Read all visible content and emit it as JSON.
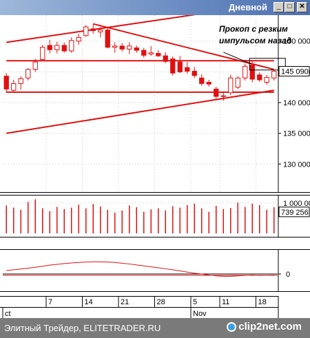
{
  "window": {
    "title": "Дневной",
    "minimize_label": "_",
    "maximize_label": "□",
    "close_label": "✕"
  },
  "chart_data": {
    "type": "candlestick",
    "panes": [
      "price",
      "volume",
      "oscillator"
    ],
    "price_axis": {
      "ticks": [
        130000,
        135000,
        140000,
        145000,
        150000
      ],
      "tick_labels": [
        "130 000",
        "135 000",
        "140 000",
        "145 000",
        "150 000"
      ],
      "range": [
        126000,
        154000
      ]
    },
    "last_price_label": "145 090",
    "annotation": "Прокоп с резким импульсом назад",
    "candles": [
      {
        "o": 144300,
        "h": 144800,
        "l": 141600,
        "c": 142200
      },
      {
        "o": 142000,
        "h": 143700,
        "l": 141800,
        "c": 143100
      },
      {
        "o": 143100,
        "h": 144300,
        "l": 142100,
        "c": 143900
      },
      {
        "o": 144000,
        "h": 145600,
        "l": 143600,
        "c": 145400
      },
      {
        "o": 145400,
        "h": 147100,
        "l": 145000,
        "c": 146600
      },
      {
        "o": 147000,
        "h": 149400,
        "l": 146800,
        "c": 149000
      },
      {
        "o": 149300,
        "h": 150200,
        "l": 148000,
        "c": 148600
      },
      {
        "o": 148600,
        "h": 149900,
        "l": 148000,
        "c": 149300
      },
      {
        "o": 149300,
        "h": 149800,
        "l": 148100,
        "c": 148400
      },
      {
        "o": 148400,
        "h": 150600,
        "l": 148100,
        "c": 150100
      },
      {
        "o": 150000,
        "h": 151200,
        "l": 149400,
        "c": 150600
      },
      {
        "o": 150900,
        "h": 152600,
        "l": 150700,
        "c": 152300
      },
      {
        "o": 152000,
        "h": 152800,
        "l": 151200,
        "c": 151700
      },
      {
        "o": 151500,
        "h": 152300,
        "l": 150600,
        "c": 151800
      },
      {
        "o": 151800,
        "h": 152100,
        "l": 148800,
        "c": 149000
      },
      {
        "o": 149000,
        "h": 149800,
        "l": 148100,
        "c": 149200
      },
      {
        "o": 149200,
        "h": 149700,
        "l": 148300,
        "c": 148700
      },
      {
        "o": 148700,
        "h": 149800,
        "l": 147900,
        "c": 149200
      },
      {
        "o": 148900,
        "h": 149300,
        "l": 148100,
        "c": 148500
      },
      {
        "o": 148500,
        "h": 148900,
        "l": 147300,
        "c": 147700
      },
      {
        "o": 147900,
        "h": 149200,
        "l": 147600,
        "c": 148100
      },
      {
        "o": 148000,
        "h": 148500,
        "l": 147400,
        "c": 147600
      },
      {
        "o": 147600,
        "h": 148200,
        "l": 146400,
        "c": 146700
      },
      {
        "o": 147100,
        "h": 147500,
        "l": 144400,
        "c": 144800
      },
      {
        "o": 146600,
        "h": 147600,
        "l": 144800,
        "c": 145000
      },
      {
        "o": 145700,
        "h": 146600,
        "l": 144700,
        "c": 145100
      },
      {
        "o": 145100,
        "h": 145800,
        "l": 144000,
        "c": 144400
      },
      {
        "o": 144000,
        "h": 144600,
        "l": 142700,
        "c": 143100
      },
      {
        "o": 143300,
        "h": 143700,
        "l": 142600,
        "c": 143000
      },
      {
        "o": 142200,
        "h": 142600,
        "l": 140600,
        "c": 141000
      },
      {
        "o": 141000,
        "h": 141800,
        "l": 140300,
        "c": 141100
      },
      {
        "o": 141600,
        "h": 144500,
        "l": 141200,
        "c": 144000
      },
      {
        "o": 142500,
        "h": 144300,
        "l": 142200,
        "c": 144000
      },
      {
        "o": 144000,
        "h": 146300,
        "l": 143600,
        "c": 145900
      },
      {
        "o": 146100,
        "h": 146700,
        "l": 143300,
        "c": 143800
      },
      {
        "o": 144500,
        "h": 144900,
        "l": 143400,
        "c": 143700
      },
      {
        "o": 143300,
        "h": 144500,
        "l": 142900,
        "c": 144100
      },
      {
        "o": 144000,
        "h": 145300,
        "l": 143600,
        "c": 145100
      }
    ],
    "trendlines": [
      {
        "from": [
          0,
          146800
        ],
        "to": [
          37,
          146800
        ]
      },
      {
        "from": [
          12,
          152800
        ],
        "to": [
          37,
          145400
        ]
      },
      {
        "from": [
          0,
          135000
        ],
        "to": [
          37,
          142000
        ]
      },
      {
        "from": [
          0,
          149800
        ],
        "to": [
          37,
          156200
        ]
      },
      {
        "from": [
          0,
          141700
        ],
        "to": [
          37,
          141700
        ]
      }
    ],
    "volume": {
      "tick_labels": [
        "1 000 00",
        "739 256"
      ],
      "values": [
        0.78,
        0.72,
        0.66,
        0.88,
        0.95,
        0.7,
        0.62,
        0.74,
        0.68,
        0.72,
        0.8,
        0.7,
        0.82,
        0.75,
        0.66,
        0.58,
        0.64,
        0.78,
        0.73,
        0.6,
        0.67,
        0.7,
        0.64,
        0.76,
        0.72,
        0.79,
        0.83,
        0.7,
        0.6,
        0.77,
        0.68,
        0.71,
        0.86,
        0.74,
        0.83,
        0.79,
        0.66,
        0.73
      ]
    },
    "oscillator": {
      "tick_labels": [
        "0"
      ],
      "values": [
        0.18,
        0.22,
        0.26,
        0.3,
        0.35,
        0.4,
        0.46,
        0.5,
        0.54,
        0.57,
        0.6,
        0.62,
        0.63,
        0.63,
        0.62,
        0.6,
        0.56,
        0.52,
        0.47,
        0.42,
        0.37,
        0.32,
        0.27,
        0.22,
        0.16,
        0.1,
        0.04,
        0.0,
        -0.06,
        -0.1,
        -0.12,
        -0.12,
        -0.1,
        -0.08,
        -0.06,
        -0.08,
        -0.07,
        -0.06
      ]
    },
    "x_axis": {
      "labels": [
        {
          "text": "7",
          "index": 6
        },
        {
          "text": "14",
          "index": 11
        },
        {
          "text": "21",
          "index": 16
        },
        {
          "text": "28",
          "index": 21
        },
        {
          "text": "5",
          "index": 26
        },
        {
          "text": "11",
          "index": 30
        },
        {
          "text": "Nov",
          "index": 26,
          "row": 2
        },
        {
          "text": "18",
          "index": 35
        },
        {
          "text": "ct",
          "index": 0,
          "row": 2
        }
      ]
    }
  },
  "footer": {
    "text": "Элитный Трейдер, ELITETRADER.RU",
    "brand": "clip2net.com"
  }
}
